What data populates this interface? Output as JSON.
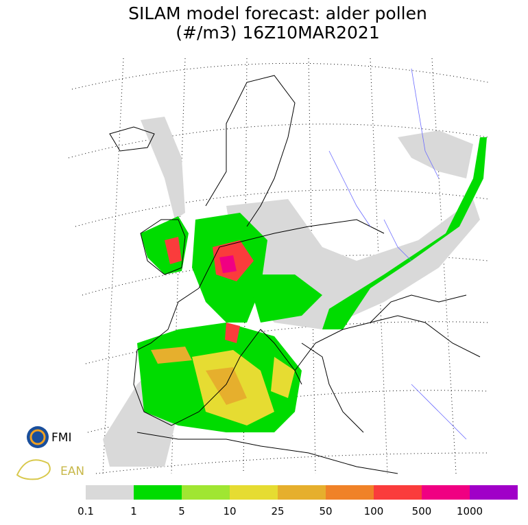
{
  "header": {
    "title_line1": "SILAM model forecast: alder pollen",
    "title_line2": "(#/m3) 16Z10MAR2021"
  },
  "legend": {
    "items": [
      {
        "label": "0.1",
        "color": "#d9d9d9"
      },
      {
        "label": "1",
        "color": "#00dc00"
      },
      {
        "label": "5",
        "color": "#a0e632"
      },
      {
        "label": "10",
        "color": "#e6dc32"
      },
      {
        "label": "25",
        "color": "#e6af2d"
      },
      {
        "label": "50",
        "color": "#f08228"
      },
      {
        "label": "100",
        "color": "#fa3c3c"
      },
      {
        "label": "500",
        "color": "#f00082"
      },
      {
        "label": "1000",
        "color": "#a000c8"
      }
    ]
  },
  "logos": {
    "fmi": "FMI",
    "ean": "EAN"
  }
}
